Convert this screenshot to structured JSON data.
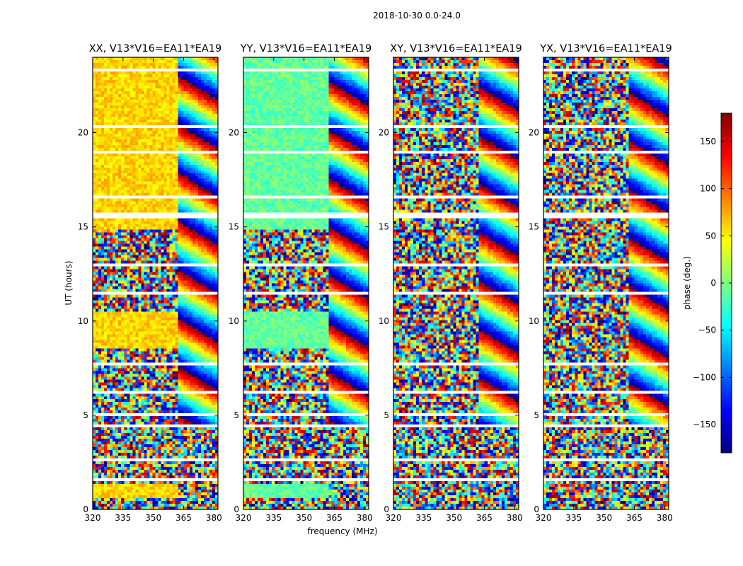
{
  "chart_data": {
    "type": "heatmap",
    "suptitle": "2018-10-30 0.0-24.0",
    "xlabel": "frequency (MHz)",
    "ylabel": "UT (hours)",
    "xlim": [
      320,
      382
    ],
    "ylim": [
      0,
      24
    ],
    "xticks": [
      320,
      335,
      350,
      365,
      380
    ],
    "xtick_labels": [
      "320",
      "335",
      "350",
      "365",
      "380"
    ],
    "yticks": [
      0,
      5,
      10,
      15,
      20
    ],
    "ytick_labels": [
      "0",
      "5",
      "10",
      "15",
      "20"
    ],
    "colorbar": {
      "label": "phase (deg.)",
      "range": [
        -180,
        180
      ],
      "ticks": [
        150,
        100,
        50,
        0,
        -50,
        -100,
        -150
      ],
      "tick_labels": [
        "150",
        "100",
        "50",
        "0",
        "−50",
        "−100",
        "−150"
      ],
      "colormap": "jet",
      "colors": [
        "#00007f",
        "#0000ff",
        "#007fff",
        "#00ffff",
        "#7fff7f",
        "#ffff00",
        "#ff7f00",
        "#ff0000",
        "#7f0000"
      ]
    },
    "panels": [
      {
        "title": "XX, V13*V16=EA11*EA19",
        "base_phase_deg": 60
      },
      {
        "title": "YY, V13*V16=EA11*EA19",
        "base_phase_deg": -10
      },
      {
        "title": "XY, V13*V16=EA11*EA19",
        "base_phase_deg": null
      },
      {
        "title": "YX, V13*V16=EA11*EA19",
        "base_phase_deg": null
      }
    ],
    "flagged_bands_hours": [
      [
        0.45,
        0.5
      ],
      [
        1.15,
        1.2
      ],
      [
        1.55,
        1.6
      ],
      [
        2.05,
        2.1
      ],
      [
        2.6,
        2.65
      ],
      [
        3.1,
        3.15
      ],
      [
        3.6,
        3.65
      ],
      [
        4.4,
        4.55
      ],
      [
        5.0,
        5.05
      ],
      [
        5.5,
        5.55
      ],
      [
        6.2,
        6.3
      ],
      [
        7.7,
        7.8
      ],
      [
        8.5,
        8.55
      ],
      [
        9.0,
        9.05
      ],
      [
        10.6,
        10.7
      ],
      [
        11.4,
        11.5
      ],
      [
        12.0,
        12.05
      ],
      [
        12.9,
        13.0
      ],
      [
        15.5,
        15.7
      ],
      [
        16.5,
        16.6
      ],
      [
        17.8,
        17.9
      ],
      [
        18.9,
        19.0
      ],
      [
        20.3,
        20.4
      ],
      [
        21.4,
        21.5
      ],
      [
        22.6,
        22.7
      ],
      [
        23.3,
        23.35
      ]
    ]
  }
}
